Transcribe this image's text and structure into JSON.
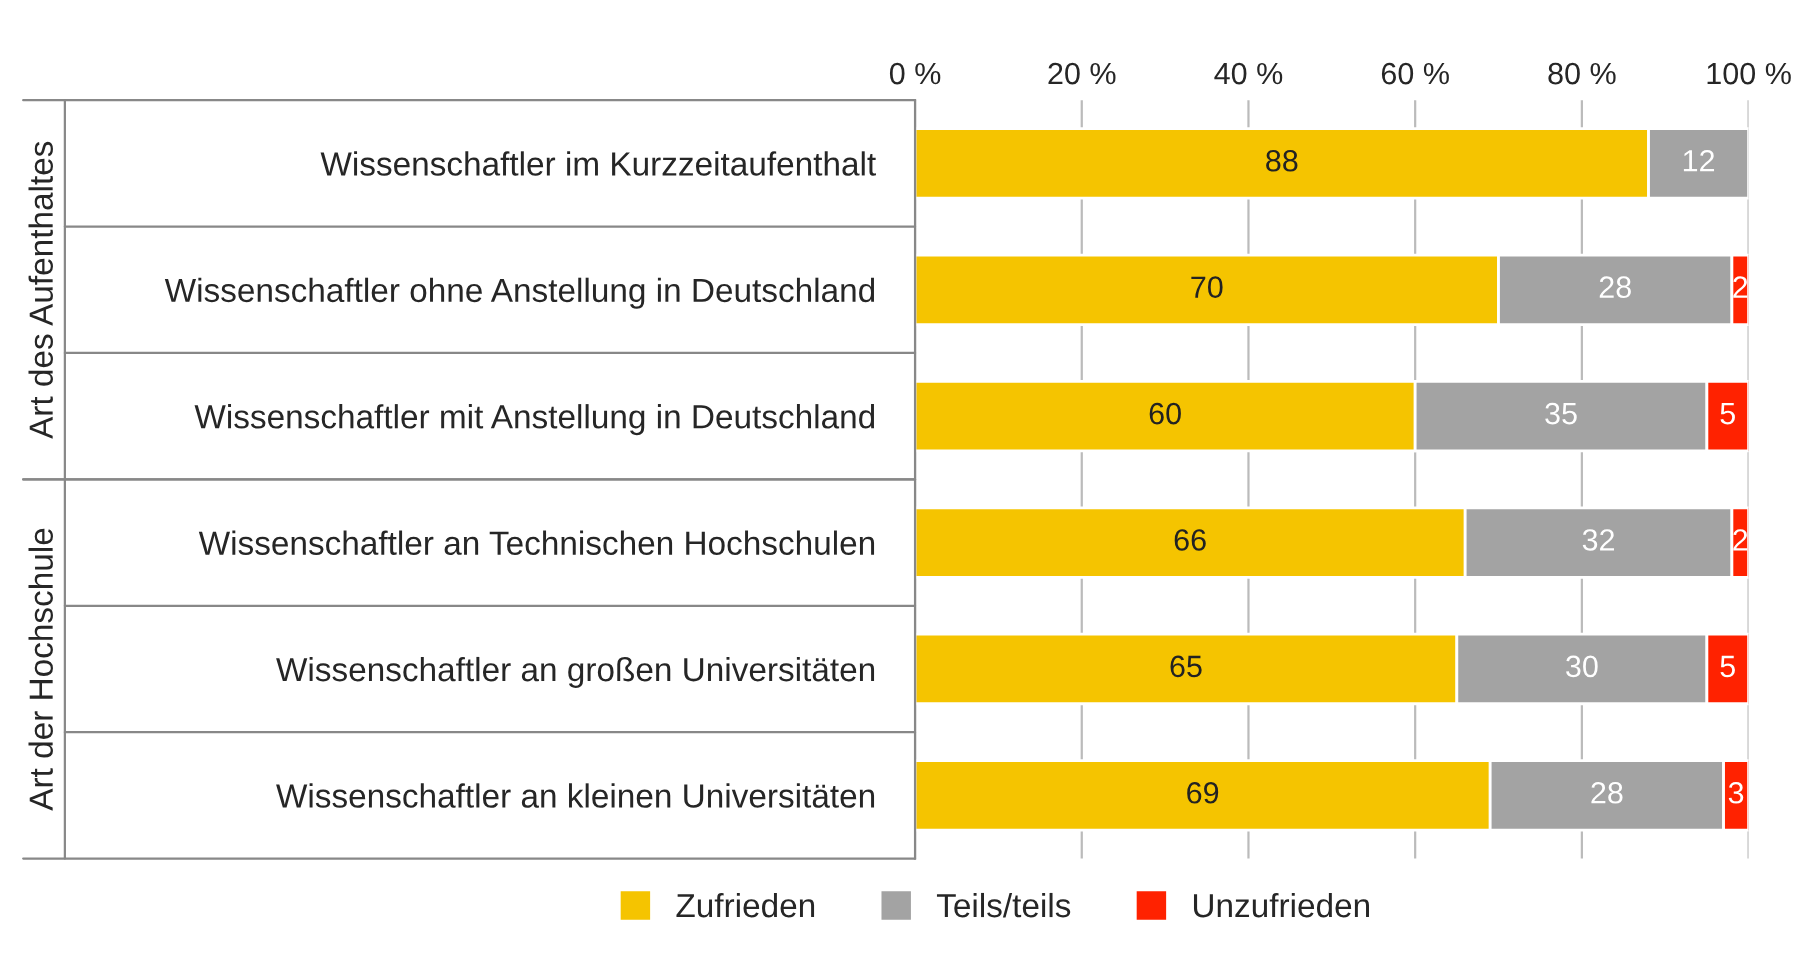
{
  "chart_data": {
    "type": "bar",
    "orientation": "horizontal",
    "stacked": true,
    "categories": [
      "Wissenschaftler im Kurzzeitaufenthalt",
      "Wissenschaftler ohne Anstellung in Deutschland",
      "Wissenschaftler mit Anstellung in Deutschland",
      "Wissenschaftler an Technischen Hochschulen",
      "Wissenschaftler an großen Universitäten",
      "Wissenschaftler an kleinen Universitäten"
    ],
    "series": [
      {
        "name": "Zufrieden",
        "color": "#f5c400",
        "values": [
          88,
          70,
          60,
          66,
          65,
          69
        ]
      },
      {
        "name": "Teils/teils",
        "color": "#a3a3a3",
        "values": [
          12,
          28,
          35,
          32,
          30,
          28
        ]
      },
      {
        "name": "Unzufrieden",
        "color": "#ff2200",
        "values": [
          null,
          2,
          5,
          2,
          5,
          3
        ]
      }
    ],
    "xlim": [
      0,
      100
    ],
    "xticks": [
      {
        "value": 0,
        "label": "0 %"
      },
      {
        "value": 20,
        "label": "20 %"
      },
      {
        "value": 40,
        "label": "40 %"
      },
      {
        "value": 60,
        "label": "60 %"
      },
      {
        "value": 80,
        "label": "80 %"
      },
      {
        "value": 100,
        "label": "100 %"
      }
    ],
    "annotations": [
      "Art des Aufenthaltes",
      "Art der Hochschule"
    ],
    "data_labels": true,
    "grid": "x",
    "legend": "bottom"
  }
}
